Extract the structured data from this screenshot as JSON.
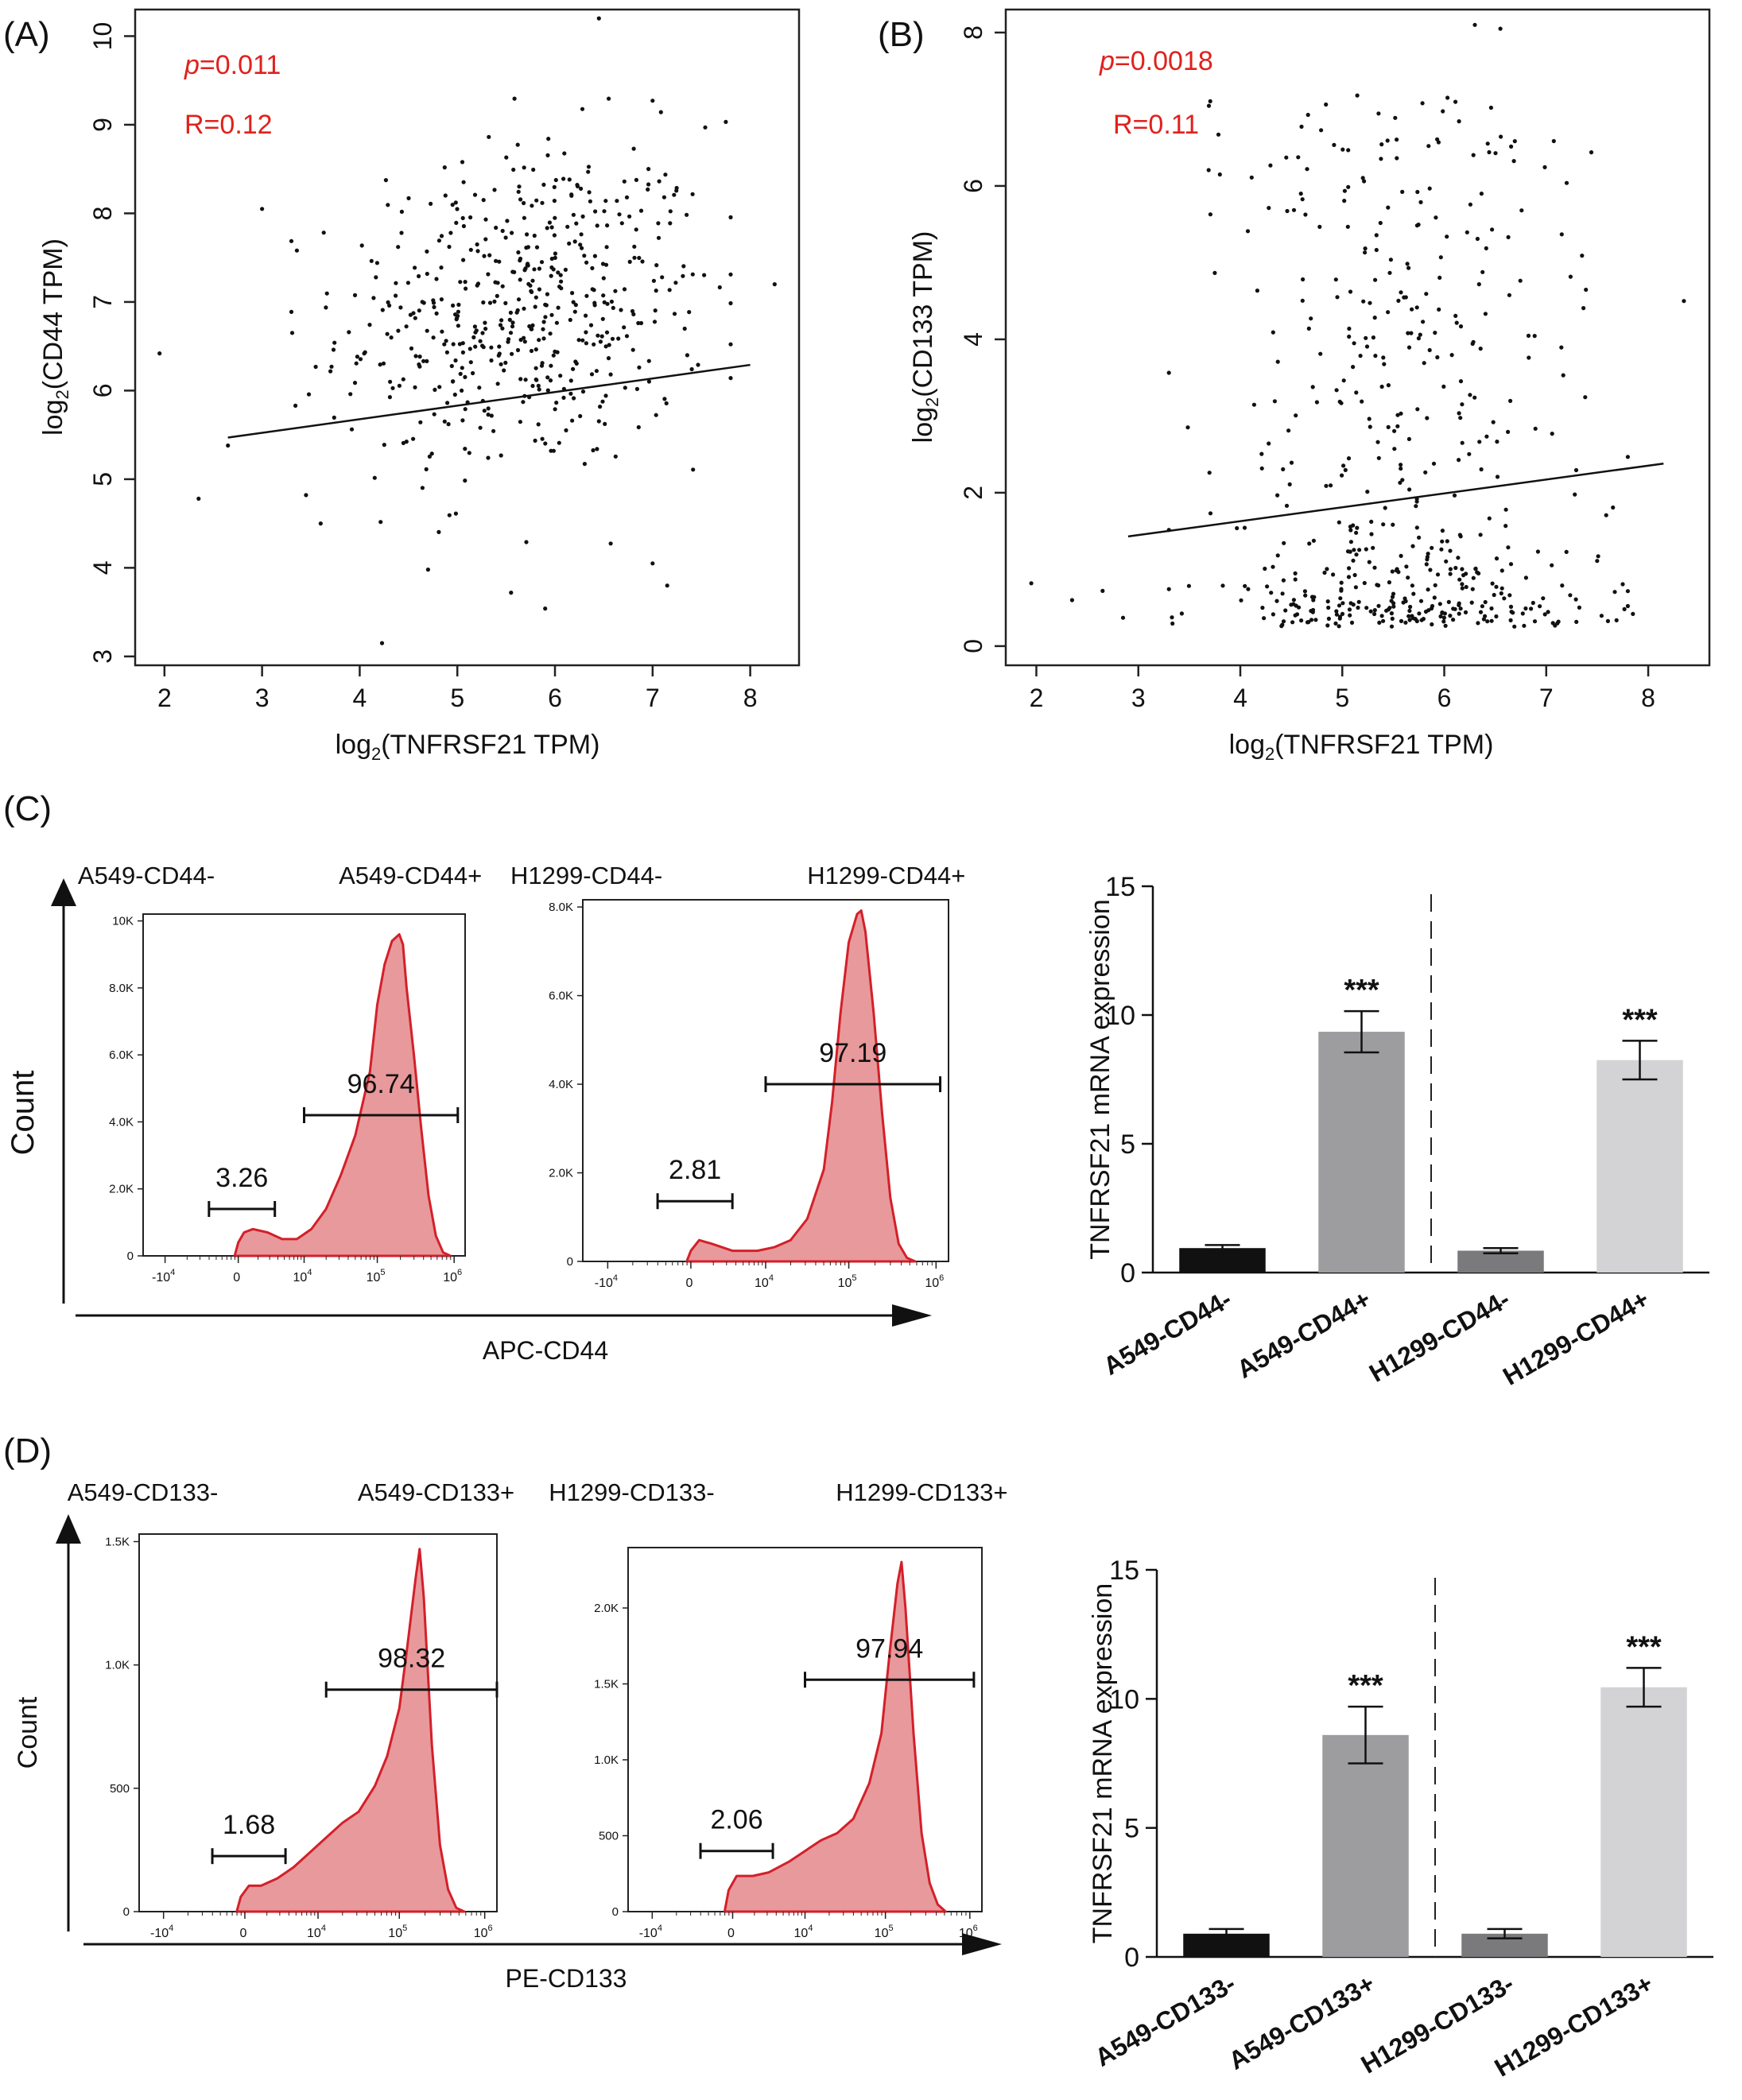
{
  "panel_labels": [
    "(A)",
    "(B)",
    "(C)",
    "(D)"
  ],
  "colors": {
    "stat_text": "#e0211d",
    "histogram_fill": "#e8999b",
    "histogram_line": "#d3202a",
    "bar_a549_neg": "#111111",
    "bar_a549_pos": "#9d9d9f",
    "bar_h1299_neg": "#7a7a7c",
    "bar_h1299_pos": "#d3d3d5"
  },
  "chart_data": [
    {
      "id": "A",
      "type": "scatter",
      "xlabel_main": "log",
      "xlabel_sub": "2",
      "xlabel_rest": "(TNFRSF21 TPM)",
      "ylabel_main": "log",
      "ylabel_sub": "2",
      "ylabel_rest": "(CD44 TPM)",
      "xlim": [
        1.7,
        8.5
      ],
      "ylim": [
        2.9,
        10.3
      ],
      "xticks": [
        2,
        3,
        4,
        5,
        6,
        7,
        8
      ],
      "yticks": [
        3,
        4,
        5,
        6,
        7,
        8,
        9,
        10
      ],
      "p_label": "p",
      "p_value": "=0.011",
      "r_text": "R=0.12",
      "fit_line": [
        [
          2.65,
          5.47
        ],
        [
          8.0,
          6.29
        ]
      ],
      "n_points": 520,
      "x_center": 5.7,
      "x_sd": 0.95,
      "y_center": 6.9,
      "y_sd": 0.95,
      "outliers": [
        [
          1.95,
          6.42
        ],
        [
          2.35,
          4.78
        ],
        [
          2.65,
          5.38
        ],
        [
          3.0,
          8.05
        ],
        [
          8.25,
          7.2
        ],
        [
          6.45,
          10.2
        ],
        [
          5.55,
          3.72
        ],
        [
          5.9,
          3.54
        ],
        [
          7.15,
          3.8
        ],
        [
          7.0,
          4.05
        ],
        [
          4.7,
          3.98
        ],
        [
          3.45,
          4.82
        ],
        [
          3.6,
          4.5
        ]
      ]
    },
    {
      "id": "B",
      "type": "scatter",
      "xlabel_main": "log",
      "xlabel_sub": "2",
      "xlabel_rest": "(TNFRSF21 TPM)",
      "ylabel_main": "log",
      "ylabel_sub": "2",
      "ylabel_rest": "(CD133 TPM)",
      "xlim": [
        1.7,
        8.6
      ],
      "ylim": [
        -0.25,
        8.3
      ],
      "xticks": [
        2,
        3,
        4,
        5,
        6,
        7,
        8
      ],
      "yticks": [
        0,
        2,
        4,
        6,
        8
      ],
      "p_label": "p",
      "p_value": "=0.0018",
      "r_text": "R=0.11",
      "fit_line": [
        [
          2.9,
          1.43
        ],
        [
          8.15,
          2.38
        ]
      ],
      "n_points": 520,
      "x_center": 5.65,
      "x_sd": 0.95,
      "y_center": 2.6,
      "y_sd": 2.0,
      "outliers": [
        [
          1.95,
          0.82
        ],
        [
          2.35,
          0.6
        ],
        [
          2.65,
          0.72
        ],
        [
          2.85,
          0.37
        ],
        [
          8.35,
          4.5
        ],
        [
          6.3,
          8.1
        ],
        [
          6.55,
          8.05
        ],
        [
          3.8,
          6.15
        ],
        [
          7.85,
          0.42
        ]
      ]
    },
    {
      "id": "C-flow-A549",
      "type": "area",
      "title_neg": "A549-CD44-",
      "title_pos": "A549-CD44+",
      "yticks": [
        "0",
        "2.0K",
        "4.0K",
        "6.0K",
        "8.0K",
        "10K"
      ],
      "ymax": 10000,
      "xtick_labels": [
        "-10",
        "0",
        "10",
        "10",
        "10"
      ],
      "xtick_sup": [
        "4",
        "",
        "4",
        "5",
        "6"
      ],
      "gate_neg_label": "3.26",
      "gate_pos_label": "96.74",
      "gate_neg_range": [
        -0.4,
        0.5
      ],
      "gate_pos_range": [
        0.9,
        3.0
      ],
      "gate_neg_height": 0.14,
      "gate_pos_height": 0.42,
      "profile": [
        [
          -0.05,
          0.0
        ],
        [
          0.0,
          0.04
        ],
        [
          0.08,
          0.07
        ],
        [
          0.2,
          0.08
        ],
        [
          0.4,
          0.07
        ],
        [
          0.6,
          0.05
        ],
        [
          0.8,
          0.05
        ],
        [
          1.0,
          0.08
        ],
        [
          1.2,
          0.14
        ],
        [
          1.4,
          0.24
        ],
        [
          1.6,
          0.36
        ],
        [
          1.8,
          0.55
        ],
        [
          1.9,
          0.75
        ],
        [
          2.0,
          0.87
        ],
        [
          2.1,
          0.94
        ],
        [
          2.2,
          0.96
        ],
        [
          2.25,
          0.93
        ],
        [
          2.3,
          0.8
        ],
        [
          2.4,
          0.6
        ],
        [
          2.5,
          0.38
        ],
        [
          2.6,
          0.18
        ],
        [
          2.7,
          0.06
        ],
        [
          2.8,
          0.01
        ],
        [
          2.9,
          0.0
        ]
      ]
    },
    {
      "id": "C-flow-H1299",
      "type": "area",
      "title_neg": "H1299-CD44-",
      "title_pos": "H1299-CD44+",
      "yticks": [
        "0",
        "2.0K",
        "4.0K",
        "6.0K",
        "8.0K"
      ],
      "ymax": 8000,
      "xtick_labels": [
        "-10",
        "0",
        "10",
        "10",
        "10"
      ],
      "xtick_sup": [
        "4",
        "",
        "4",
        "5",
        "6"
      ],
      "gate_neg_label": "2.81",
      "gate_pos_label": "97.19",
      "gate_neg_range": [
        -0.4,
        0.5
      ],
      "gate_pos_range": [
        0.9,
        3.0
      ],
      "gate_neg_height": 0.17,
      "gate_pos_height": 0.5,
      "profile": [
        [
          -0.05,
          0.0
        ],
        [
          0.0,
          0.03
        ],
        [
          0.1,
          0.06
        ],
        [
          0.25,
          0.05
        ],
        [
          0.5,
          0.03
        ],
        [
          0.8,
          0.03
        ],
        [
          1.0,
          0.04
        ],
        [
          1.2,
          0.06
        ],
        [
          1.4,
          0.12
        ],
        [
          1.6,
          0.26
        ],
        [
          1.7,
          0.45
        ],
        [
          1.8,
          0.7
        ],
        [
          1.9,
          0.9
        ],
        [
          2.0,
          0.98
        ],
        [
          2.05,
          0.99
        ],
        [
          2.1,
          0.93
        ],
        [
          2.2,
          0.7
        ],
        [
          2.3,
          0.42
        ],
        [
          2.4,
          0.18
        ],
        [
          2.5,
          0.05
        ],
        [
          2.6,
          0.01
        ],
        [
          2.7,
          0.0
        ]
      ]
    },
    {
      "id": "C-bar",
      "type": "bar",
      "ylabel": "TNFRSF21 mRNA expression",
      "ylim": [
        0,
        15
      ],
      "yticks": [
        0,
        5,
        10,
        15
      ],
      "categories": [
        "A549-CD44-",
        "A549-CD44+",
        "H1299-CD44-",
        "H1299-CD44+"
      ],
      "values": [
        0.95,
        9.35,
        0.85,
        8.25
      ],
      "errors": [
        0.12,
        0.8,
        0.1,
        0.75
      ],
      "significance": [
        "",
        "***",
        "",
        "***"
      ]
    },
    {
      "id": "D-flow-A549",
      "type": "area",
      "title_neg": "A549-CD133-",
      "title_pos": "A549-CD133+",
      "yticks": [
        "0",
        "500",
        "1.0K",
        "1.5K"
      ],
      "ymax": 1500,
      "xtick_labels": [
        "-10",
        "0",
        "10",
        "10",
        "10"
      ],
      "xtick_sup": [
        "4",
        "",
        "4",
        "5",
        "6"
      ],
      "gate_neg_label": "1.68",
      "gate_pos_label": "98.32",
      "gate_neg_range": [
        -0.4,
        0.5
      ],
      "gate_pos_range": [
        1.0,
        3.1
      ],
      "gate_neg_height": 0.15,
      "gate_pos_height": 0.6,
      "profile": [
        [
          -0.1,
          0.0
        ],
        [
          -0.05,
          0.04
        ],
        [
          0.05,
          0.07
        ],
        [
          0.2,
          0.07
        ],
        [
          0.4,
          0.09
        ],
        [
          0.6,
          0.12
        ],
        [
          0.8,
          0.16
        ],
        [
          1.0,
          0.2
        ],
        [
          1.2,
          0.24
        ],
        [
          1.4,
          0.27
        ],
        [
          1.6,
          0.34
        ],
        [
          1.75,
          0.42
        ],
        [
          1.9,
          0.55
        ],
        [
          2.0,
          0.72
        ],
        [
          2.1,
          0.9
        ],
        [
          2.15,
          0.98
        ],
        [
          2.2,
          0.85
        ],
        [
          2.3,
          0.45
        ],
        [
          2.4,
          0.18
        ],
        [
          2.5,
          0.06
        ],
        [
          2.6,
          0.01
        ],
        [
          2.7,
          0.0
        ]
      ]
    },
    {
      "id": "D-flow-H1299",
      "type": "area",
      "title_neg": "H1299-CD133-",
      "title_pos": "H1299-CD133+",
      "yticks": [
        "0",
        "500",
        "1.0K",
        "1.5K",
        "2.0K"
      ],
      "ymax": 2350,
      "xtick_labels": [
        "-10",
        "0",
        "10",
        "10",
        "10"
      ],
      "xtick_sup": [
        "4",
        "",
        "4",
        "5",
        "6"
      ],
      "gate_neg_label": "2.06",
      "gate_pos_label": "97.94",
      "gate_neg_range": [
        -0.4,
        0.5
      ],
      "gate_pos_range": [
        0.9,
        3.0
      ],
      "gate_neg_height": 0.17,
      "gate_pos_height": 0.65,
      "profile": [
        [
          -0.1,
          0.0
        ],
        [
          -0.05,
          0.06
        ],
        [
          0.05,
          0.1
        ],
        [
          0.25,
          0.1
        ],
        [
          0.45,
          0.11
        ],
        [
          0.7,
          0.14
        ],
        [
          0.9,
          0.17
        ],
        [
          1.1,
          0.2
        ],
        [
          1.3,
          0.22
        ],
        [
          1.5,
          0.26
        ],
        [
          1.7,
          0.36
        ],
        [
          1.85,
          0.5
        ],
        [
          1.95,
          0.72
        ],
        [
          2.05,
          0.92
        ],
        [
          2.1,
          0.98
        ],
        [
          2.15,
          0.85
        ],
        [
          2.25,
          0.5
        ],
        [
          2.35,
          0.22
        ],
        [
          2.45,
          0.08
        ],
        [
          2.55,
          0.02
        ],
        [
          2.65,
          0.0
        ]
      ]
    },
    {
      "id": "D-bar",
      "type": "bar",
      "ylabel": "TNFRSF21 mRNA expression",
      "ylim": [
        0,
        15
      ],
      "yticks": [
        0,
        5,
        10,
        15
      ],
      "categories": [
        "A549-CD133-",
        "A549-CD133+",
        "H1299-CD133-",
        "H1299-CD133+"
      ],
      "values": [
        0.9,
        8.6,
        0.9,
        10.45
      ],
      "errors": [
        0.18,
        1.1,
        0.18,
        0.75
      ],
      "significance": [
        "",
        "***",
        "",
        "***"
      ]
    }
  ],
  "flow_axes": {
    "C_count_label": "Count",
    "C_x_label": "APC-CD44",
    "D_count_label": "Count",
    "D_x_label": "PE-CD133"
  }
}
